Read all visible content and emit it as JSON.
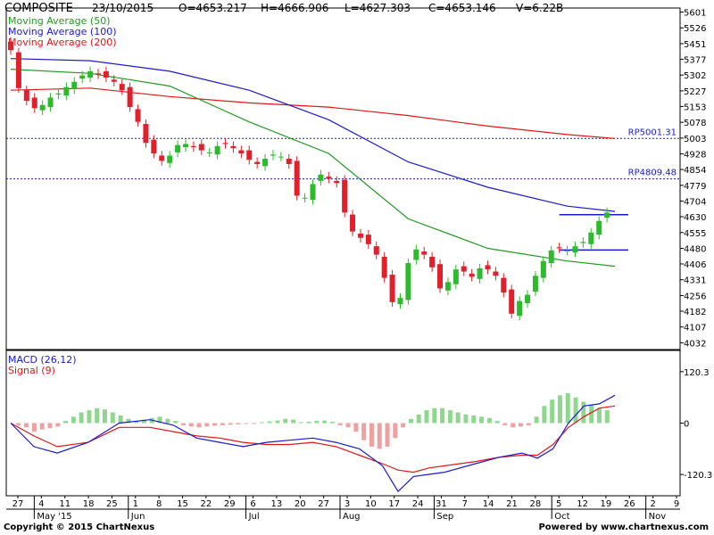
{
  "header": {
    "symbol": "COMPOSITE",
    "date": "23/10/2015",
    "open": "O=4653.217",
    "high": "H=4666.906",
    "low": "L=4627.303",
    "close": "C=4653.146",
    "volume": "V=6.22B"
  },
  "footer": {
    "copyright": "Copyright © 2015 ChartNexus",
    "powered": "Powered by www.chartnexus.com"
  },
  "colors": {
    "up": "#2dbb2d",
    "down": "#e0202a",
    "ma50": "#1e9c1e",
    "ma100": "#1a1ad0",
    "ma200": "#e01818",
    "macd": "#1a1ad0",
    "signal": "#e01818",
    "hist_up": "#8fd68f",
    "hist_down": "#f0a0a0",
    "annotation": "#1a1ad0"
  },
  "chart_data": [
    {
      "type": "candlestick",
      "legend": [
        {
          "label": "Moving Average (50)",
          "color": "#1e9c1e"
        },
        {
          "label": "Moving Average (100)",
          "color": "#1a1ad0"
        },
        {
          "label": "Moving Average (200)",
          "color": "#e01818"
        }
      ],
      "y_ticks": [
        5601,
        5526,
        5451,
        5377,
        5302,
        5227,
        5153,
        5078,
        5003,
        4928,
        4854,
        4779,
        4704,
        4630,
        4555,
        4480,
        4406,
        4331,
        4256,
        4182,
        4107,
        4032
      ],
      "ylim": [
        4000,
        5620
      ],
      "x_tick_labels": [
        "27",
        "4",
        "11",
        "18",
        "25",
        "1",
        "8",
        "15",
        "22",
        "29",
        "6",
        "13",
        "20",
        "27",
        "3",
        "10",
        "17",
        "24",
        "31",
        "7",
        "14",
        "21",
        "28",
        "5",
        "12",
        "19",
        "26",
        "2",
        "9"
      ],
      "month_labels": [
        "May '15",
        "Jun",
        "Jul",
        "Aug",
        "Sep",
        "Oct",
        "Nov"
      ],
      "close_series": [
        5420,
        5240,
        5180,
        5145,
        5160,
        5195,
        5215,
        5245,
        5270,
        5300,
        5320,
        5305,
        5290,
        5270,
        5230,
        5150,
        5080,
        4980,
        4930,
        4895,
        4920,
        4970,
        4975,
        4960,
        4945,
        4935,
        4965,
        4975,
        4955,
        4930,
        4900,
        4880,
        4905,
        4925,
        4915,
        4880,
        4730,
        4720,
        4785,
        4830,
        4810,
        4790,
        4650,
        4560,
        4530,
        4500,
        4450,
        4340,
        4225,
        4245,
        4410,
        4475,
        4450,
        4390,
        4290,
        4320,
        4380,
        4370,
        4345,
        4385,
        4380,
        4350,
        4270,
        4170,
        4230,
        4260,
        4350,
        4420,
        4470,
        4480,
        4470,
        4490,
        4510,
        4555,
        4610,
        4650
      ],
      "horizontal_lines": [
        {
          "label": "RP5001.31",
          "value": 5001.31,
          "style": "dotted"
        },
        {
          "label": "RP4809.48",
          "value": 4809.48,
          "style": "dotted"
        },
        {
          "value": 4640,
          "style": "solid",
          "segment": "Oct"
        },
        {
          "value": 4472,
          "style": "solid",
          "segment": "Oct"
        }
      ],
      "ma50": [
        [
          0,
          5330
        ],
        [
          10,
          5310
        ],
        [
          20,
          5250
        ],
        [
          30,
          5080
        ],
        [
          40,
          4930
        ],
        [
          50,
          4620
        ],
        [
          60,
          4480
        ],
        [
          70,
          4420
        ],
        [
          76,
          4395
        ]
      ],
      "ma100": [
        [
          0,
          5380
        ],
        [
          10,
          5370
        ],
        [
          20,
          5320
        ],
        [
          30,
          5230
        ],
        [
          40,
          5090
        ],
        [
          50,
          4890
        ],
        [
          60,
          4770
        ],
        [
          70,
          4680
        ],
        [
          76,
          4655
        ]
      ],
      "ma200": [
        [
          0,
          5230
        ],
        [
          10,
          5240
        ],
        [
          20,
          5200
        ],
        [
          30,
          5170
        ],
        [
          40,
          5150
        ],
        [
          50,
          5110
        ],
        [
          60,
          5060
        ],
        [
          70,
          5020
        ],
        [
          76,
          5001
        ]
      ]
    },
    {
      "type": "macd",
      "legend": [
        {
          "label": "MACD (26,12)",
          "color": "#1a1ad0"
        },
        {
          "label": "Signal (9)",
          "color": "#e01818"
        }
      ],
      "y_ticks": [
        120.3,
        0,
        -120.3
      ],
      "ylim": [
        -170,
        170
      ],
      "macd": [
        [
          0,
          0
        ],
        [
          3,
          -55
        ],
        [
          6,
          -70
        ],
        [
          10,
          -45
        ],
        [
          14,
          0
        ],
        [
          18,
          8
        ],
        [
          21,
          -5
        ],
        [
          24,
          -35
        ],
        [
          27,
          -45
        ],
        [
          30,
          -55
        ],
        [
          33,
          -45
        ],
        [
          36,
          -40
        ],
        [
          39,
          -35
        ],
        [
          42,
          -45
        ],
        [
          45,
          -60
        ],
        [
          48,
          -100
        ],
        [
          50,
          -160
        ],
        [
          52,
          -125
        ],
        [
          54,
          -120
        ],
        [
          56,
          -115
        ],
        [
          60,
          -95
        ],
        [
          63,
          -80
        ],
        [
          66,
          -70
        ],
        [
          68,
          -82
        ],
        [
          70,
          -60
        ],
        [
          72,
          0
        ],
        [
          74,
          40
        ],
        [
          76,
          45
        ],
        [
          78,
          65
        ]
      ],
      "signal": [
        [
          0,
          0
        ],
        [
          3,
          -30
        ],
        [
          6,
          -55
        ],
        [
          10,
          -45
        ],
        [
          14,
          -10
        ],
        [
          18,
          -10
        ],
        [
          21,
          -20
        ],
        [
          24,
          -30
        ],
        [
          27,
          -35
        ],
        [
          30,
          -45
        ],
        [
          33,
          -50
        ],
        [
          36,
          -50
        ],
        [
          39,
          -45
        ],
        [
          42,
          -55
        ],
        [
          45,
          -75
        ],
        [
          48,
          -95
        ],
        [
          50,
          -110
        ],
        [
          52,
          -115
        ],
        [
          54,
          -105
        ],
        [
          56,
          -100
        ],
        [
          60,
          -90
        ],
        [
          63,
          -80
        ],
        [
          66,
          -75
        ],
        [
          68,
          -75
        ],
        [
          70,
          -50
        ],
        [
          72,
          -10
        ],
        [
          74,
          15
        ],
        [
          76,
          35
        ],
        [
          78,
          40
        ]
      ],
      "histogram": [
        [
          1,
          -5
        ],
        [
          2,
          -10
        ],
        [
          3,
          -20
        ],
        [
          4,
          -15
        ],
        [
          5,
          -12
        ],
        [
          6,
          -8
        ],
        [
          7,
          5
        ],
        [
          8,
          15
        ],
        [
          9,
          25
        ],
        [
          10,
          30
        ],
        [
          11,
          35
        ],
        [
          12,
          32
        ],
        [
          13,
          25
        ],
        [
          14,
          18
        ],
        [
          15,
          10
        ],
        [
          16,
          5
        ],
        [
          17,
          8
        ],
        [
          18,
          12
        ],
        [
          19,
          15
        ],
        [
          20,
          10
        ],
        [
          21,
          5
        ],
        [
          22,
          -5
        ],
        [
          23,
          -8
        ],
        [
          24,
          -10
        ],
        [
          25,
          -8
        ],
        [
          26,
          -6
        ],
        [
          27,
          -5
        ],
        [
          28,
          -4
        ],
        [
          29,
          -3
        ],
        [
          30,
          -2
        ],
        [
          31,
          -1
        ],
        [
          32,
          2
        ],
        [
          33,
          4
        ],
        [
          34,
          6
        ],
        [
          35,
          10
        ],
        [
          36,
          8
        ],
        [
          37,
          2
        ],
        [
          38,
          3
        ],
        [
          39,
          5
        ],
        [
          40,
          6
        ],
        [
          41,
          3
        ],
        [
          42,
          -5
        ],
        [
          43,
          -10
        ],
        [
          44,
          -20
        ],
        [
          45,
          -40
        ],
        [
          46,
          -55
        ],
        [
          47,
          -60
        ],
        [
          48,
          -55
        ],
        [
          49,
          -35
        ],
        [
          50,
          -10
        ],
        [
          51,
          10
        ],
        [
          52,
          20
        ],
        [
          53,
          30
        ],
        [
          54,
          35
        ],
        [
          55,
          35
        ],
        [
          56,
          30
        ],
        [
          57,
          25
        ],
        [
          58,
          20
        ],
        [
          59,
          18
        ],
        [
          60,
          15
        ],
        [
          61,
          12
        ],
        [
          62,
          5
        ],
        [
          63,
          -5
        ],
        [
          64,
          -10
        ],
        [
          65,
          -8
        ],
        [
          66,
          -5
        ],
        [
          67,
          15
        ],
        [
          68,
          40
        ],
        [
          69,
          55
        ],
        [
          70,
          65
        ],
        [
          71,
          70
        ],
        [
          72,
          60
        ],
        [
          73,
          50
        ],
        [
          74,
          42
        ],
        [
          75,
          35
        ],
        [
          76,
          30
        ]
      ]
    }
  ]
}
